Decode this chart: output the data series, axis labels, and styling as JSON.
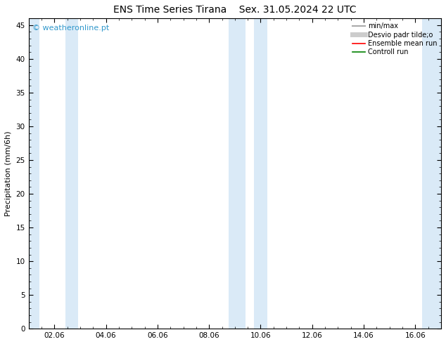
{
  "title": "ENS Time Series Tirana",
  "subtitle": "Sex. 31.05.2024 22 UTC",
  "ylabel": "Precipitation (mm/6h)",
  "ylim": [
    0,
    46
  ],
  "yticks": [
    0,
    5,
    10,
    15,
    20,
    25,
    30,
    35,
    40,
    45
  ],
  "background_color": "#ffffff",
  "plot_bg_color": "#ffffff",
  "band_color": "#daeaf7",
  "watermark": "© weatheronline.pt",
  "watermark_color": "#3399cc",
  "legend_items": [
    {
      "label": "min/max",
      "color": "#aaaaaa",
      "lw": 1.5
    },
    {
      "label": "Desvio padr tilde;o",
      "color": "#cccccc",
      "lw": 5
    },
    {
      "label": "Ensemble mean run",
      "color": "#ff0000",
      "lw": 1.2
    },
    {
      "label": "Controll run",
      "color": "#008000",
      "lw": 1.2
    }
  ],
  "x_min": 0,
  "x_max": 16.0,
  "tick_labels": [
    "02.06",
    "04.06",
    "06.06",
    "08.06",
    "10.06",
    "12.06",
    "14.06",
    "16.06"
  ],
  "tick_positions": [
    1,
    3,
    5,
    7,
    9,
    11,
    13,
    15
  ],
  "night_bands": [
    [
      0.0,
      0.42
    ],
    [
      1.42,
      1.92
    ],
    [
      7.75,
      8.42
    ],
    [
      8.75,
      9.25
    ],
    [
      15.25,
      16.0
    ]
  ],
  "title_fontsize": 10,
  "ylabel_fontsize": 8,
  "tick_fontsize": 7.5,
  "legend_fontsize": 7
}
